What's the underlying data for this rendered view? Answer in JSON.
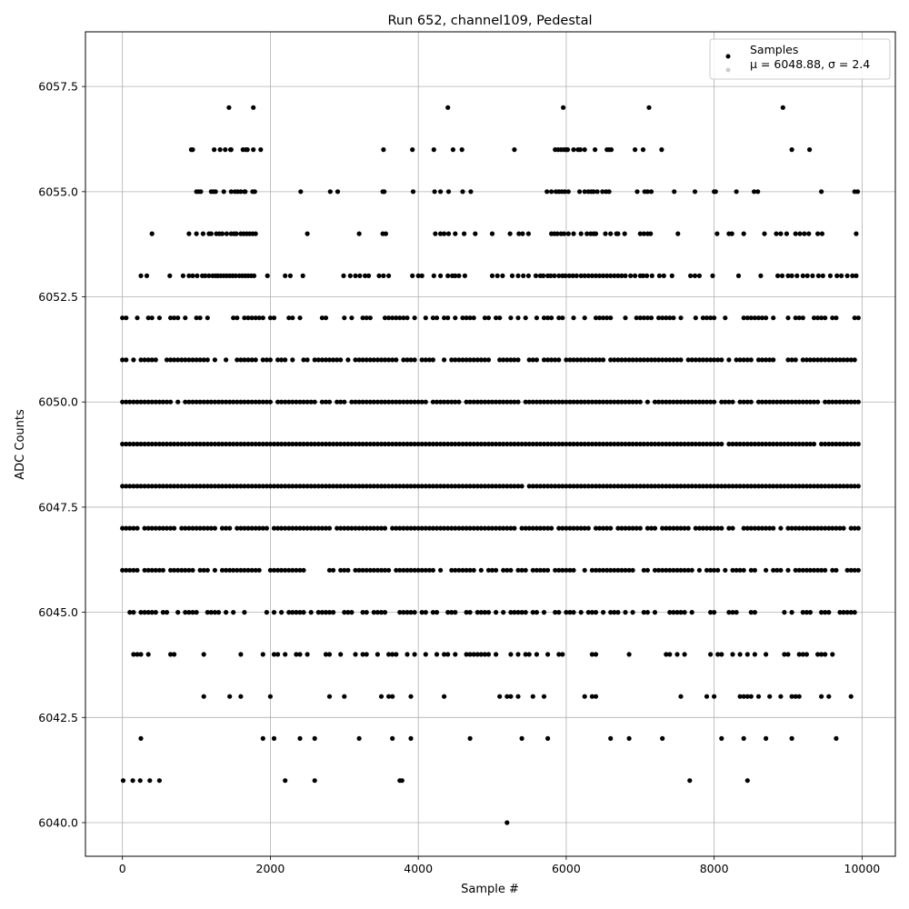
{
  "chart_data": {
    "type": "scatter",
    "title": "Run 652, channel109, Pedestal",
    "xlabel": "Sample #",
    "ylabel": "ADC Counts",
    "xlim": [
      -500,
      10450
    ],
    "ylim": [
      6039.2,
      6058.8
    ],
    "xticks": [
      0,
      2000,
      4000,
      6000,
      8000,
      10000
    ],
    "xtick_labels": [
      "0",
      "2000",
      "4000",
      "6000",
      "8000",
      "10000"
    ],
    "yticks": [
      6040.0,
      6042.5,
      6045.0,
      6047.5,
      6050.0,
      6052.5,
      6055.0,
      6057.5
    ],
    "ytick_labels": [
      "6040.0",
      "6042.5",
      "6045.0",
      "6047.5",
      "6050.0",
      "6052.5",
      "6055.0",
      "6057.5"
    ],
    "grid": true,
    "legend": {
      "placement": "top-right",
      "entries": [
        {
          "label": "Samples",
          "color": "#000000"
        },
        {
          "label": "μ = 6048.88, σ = 2.4",
          "color": "#cccccc"
        }
      ]
    },
    "series": [
      {
        "name": "Samples",
        "color": "#000000",
        "x_range": [
          0,
          9950
        ],
        "x_step": 50,
        "level_rows": [
          {
            "y": 6057,
            "x": [
              1440,
              1770,
              4400,
              5960,
              7120,
              8930
            ]
          },
          {
            "y": 6056,
            "x": [
              930,
              950,
              1240,
              1320,
              1390,
              1460,
              1470,
              1630,
              1670,
              1690,
              1770,
              1870,
              3530,
              3920,
              4210,
              4470,
              4590,
              5300,
              5850,
              5890,
              5930,
              5970,
              6000,
              6020,
              6100,
              6160,
              6190,
              6250,
              6390,
              6550,
              6580,
              6610,
              6930,
              7040,
              7290,
              9050,
              9290
            ]
          },
          {
            "y": 6055,
            "x": [
              1000,
              1030,
              1060,
              1200,
              1230,
              1260,
              1370,
              1470,
              1520,
              1560,
              1600,
              1650,
              1660,
              1760,
              1790,
              2410,
              2810,
              2910,
              3520,
              3540,
              3930,
              4220,
              4300,
              4410,
              4600,
              4710,
              5740,
              5800,
              5860,
              5900,
              5940,
              5980,
              6030,
              6180,
              6250,
              6300,
              6340,
              6370,
              6420,
              6490,
              6540,
              6580,
              6960,
              7060,
              7100,
              7150,
              7460,
              7740,
              8000,
              8020,
              8300,
              8540,
              8590,
              9450,
              9900,
              9940
            ]
          },
          {
            "y": 6054,
            "x": [
              400,
              900,
              1000,
              1090,
              1170,
              1200,
              1270,
              1310,
              1350,
              1410,
              1470,
              1510,
              1540,
              1600,
              1640,
              1680,
              1720,
              1760,
              1800,
              2500,
              3200,
              3520,
              3560,
              4230,
              4300,
              4350,
              4410,
              4500,
              4620,
              4770,
              5000,
              5240,
              5360,
              5410,
              5490,
              5800,
              5840,
              5880,
              5930,
              5970,
              6030,
              6100,
              6200,
              6280,
              6330,
              6370,
              6400,
              6530,
              6600,
              6680,
              6700,
              6790,
              7000,
              7050,
              7100,
              7140,
              7510,
              8040,
              8200,
              8240,
              8400,
              8680,
              8840,
              8900,
              8980,
              9100,
              9160,
              9220,
              9280,
              9400,
              9460,
              9920
            ]
          },
          {
            "y": 6053,
            "x": [
              250,
              330,
              640,
              820,
              900,
              950,
              1010,
              1080,
              1120,
              1170,
              1220,
              1260,
              1290,
              1330,
              1370,
              1410,
              1450,
              1490,
              1530,
              1580,
              1620,
              1660,
              1700,
              1740,
              1780,
              1960,
              2200,
              2270,
              2440,
              2990,
              3080,
              3150,
              3210,
              3280,
              3330,
              3470,
              3530,
              3600,
              3920,
              4000,
              4050,
              4210,
              4300,
              4400,
              4460,
              4500,
              4550,
              4630,
              5000,
              5070,
              5140,
              5270,
              5350,
              5420,
              5490,
              5590,
              5650,
              5690,
              5750,
              5790,
              5840,
              5900,
              5950,
              5990,
              6040,
              6090,
              6140,
              6200,
              6250,
              6300,
              6350,
              6400,
              6450,
              6500,
              6550,
              6600,
              6650,
              6700,
              6750,
              6800,
              6870,
              6930,
              7000,
              7040,
              7090,
              7160,
              7260,
              7320,
              7430,
              7680,
              7740,
              7800,
              7980,
              8330,
              8630,
              8860,
              8920,
              9000,
              9050,
              9120,
              9200,
              9260,
              9330,
              9410,
              9470,
              9570,
              9660,
              9720,
              9800,
              9870,
              9920
            ]
          },
          {
            "y": 6041,
            "x": [
              10,
              140,
              240,
              370,
              500,
              2200,
              2600,
              3750,
              3780,
              7670,
              8450
            ]
          },
          {
            "y": 6040,
            "x": [
              5200
            ]
          }
        ],
        "dense_levels": [
          {
            "y": 6052,
            "fill": 0.58
          },
          {
            "y": 6051,
            "fill": 0.78
          },
          {
            "y": 6050,
            "fill": 0.92
          },
          {
            "y": 6049,
            "fill": 0.99
          },
          {
            "y": 6048,
            "fill": 0.99
          },
          {
            "y": 6047,
            "fill": 0.92
          },
          {
            "y": 6046,
            "fill": 0.8
          },
          {
            "y": 6045,
            "fill": 0.6
          },
          {
            "y": 6044,
            "fill": 0.34
          },
          {
            "y": 6043,
            "fill": 0.16
          },
          {
            "y": 6042,
            "fill": 0.07
          }
        ]
      }
    ]
  }
}
